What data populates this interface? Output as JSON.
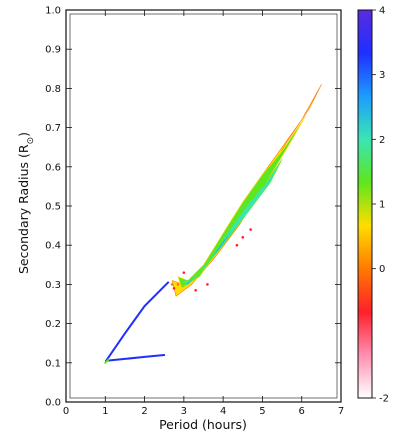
{
  "chart_data": {
    "type": "heatmap",
    "title": "",
    "xlabel": "Period (hours)",
    "ylabel": "Secondary Radius (R",
    "ylabel_subscript": "⊙",
    "ylabel_close": ")",
    "xlim": [
      0,
      7
    ],
    "ylim": [
      0.0,
      1.0
    ],
    "x_ticks": [
      "0",
      "1",
      "2",
      "3",
      "4",
      "5",
      "6",
      "7"
    ],
    "y_ticks": [
      "0.0",
      "0.1",
      "0.2",
      "0.3",
      "0.4",
      "0.5",
      "0.6",
      "0.7",
      "0.8",
      "0.9",
      "1.0"
    ],
    "colorbar": {
      "range": [
        -2,
        4
      ],
      "ticks": [
        "-2",
        "0",
        "1",
        "2",
        "3",
        "4"
      ],
      "colormap": [
        "#ffffff",
        "#ff8fb0",
        "#ff1f2a",
        "#ff7a00",
        "#ffdd00",
        "#5fe61e",
        "#39e6b4",
        "#1d9bff",
        "#1f2fff",
        "#5a2be0"
      ]
    },
    "regions": [
      {
        "name": "main-band-outer",
        "level": 0.6,
        "path": [
          [
            2.7,
            0.31
          ],
          [
            3.0,
            0.3
          ],
          [
            3.5,
            0.34
          ],
          [
            4.0,
            0.43
          ],
          [
            4.5,
            0.51
          ],
          [
            5.0,
            0.58
          ],
          [
            5.5,
            0.65
          ],
          [
            6.0,
            0.72
          ],
          [
            6.5,
            0.81
          ],
          [
            6.2,
            0.75
          ],
          [
            5.6,
            0.66
          ],
          [
            5.0,
            0.55
          ],
          [
            4.4,
            0.45
          ],
          [
            3.8,
            0.37
          ],
          [
            3.2,
            0.3
          ],
          [
            2.8,
            0.27
          ]
        ]
      },
      {
        "name": "main-band-inner",
        "level": 1.1,
        "path": [
          [
            2.85,
            0.32
          ],
          [
            3.1,
            0.31
          ],
          [
            3.5,
            0.35
          ],
          [
            4.0,
            0.43
          ],
          [
            4.5,
            0.51
          ],
          [
            5.0,
            0.58
          ],
          [
            5.5,
            0.64
          ],
          [
            6.1,
            0.73
          ],
          [
            5.7,
            0.66
          ],
          [
            5.1,
            0.56
          ],
          [
            4.5,
            0.47
          ],
          [
            3.9,
            0.39
          ],
          [
            3.4,
            0.32
          ],
          [
            2.95,
            0.29
          ]
        ]
      },
      {
        "name": "main-band-core",
        "level": 1.8,
        "path": [
          [
            2.95,
            0.31
          ],
          [
            3.2,
            0.31
          ],
          [
            3.6,
            0.35
          ],
          [
            4.1,
            0.43
          ],
          [
            4.6,
            0.5
          ],
          [
            5.1,
            0.56
          ],
          [
            5.5,
            0.62
          ],
          [
            5.2,
            0.56
          ],
          [
            4.6,
            0.48
          ],
          [
            4.0,
            0.4
          ],
          [
            3.5,
            0.34
          ],
          [
            3.1,
            0.3
          ]
        ]
      },
      {
        "name": "main-band-spine",
        "level": 2.6,
        "path": [
          [
            3.05,
            0.3
          ],
          [
            3.4,
            0.33
          ],
          [
            3.9,
            0.39
          ],
          [
            4.4,
            0.46
          ],
          [
            4.0,
            0.41
          ],
          [
            3.5,
            0.34
          ],
          [
            3.1,
            0.3
          ]
        ]
      }
    ],
    "tracks": [
      {
        "name": "upper-branch",
        "level": 3.0,
        "points": [
          [
            1.02,
            0.105
          ],
          [
            1.5,
            0.175
          ],
          [
            2.0,
            0.245
          ],
          [
            2.6,
            0.305
          ]
        ]
      },
      {
        "name": "lower-branch",
        "level": 3.6,
        "points": [
          [
            1.02,
            0.105
          ],
          [
            1.5,
            0.11
          ],
          [
            2.0,
            0.115
          ],
          [
            2.5,
            0.12
          ]
        ]
      },
      {
        "name": "bounce-tip",
        "level": 1.2,
        "points": [
          [
            1.0,
            0.1
          ],
          [
            1.08,
            0.108
          ]
        ]
      }
    ],
    "scatter": [
      {
        "name": "scatter-1",
        "level": -0.5,
        "x": 2.75,
        "y": 0.29
      },
      {
        "name": "scatter-2",
        "level": -0.3,
        "x": 2.85,
        "y": 0.3
      },
      {
        "name": "scatter-3",
        "level": -0.8,
        "x": 3.3,
        "y": 0.285
      },
      {
        "name": "scatter-4",
        "level": -0.5,
        "x": 3.6,
        "y": 0.3
      },
      {
        "name": "scatter-5",
        "level": -0.9,
        "x": 4.35,
        "y": 0.4
      },
      {
        "name": "scatter-6",
        "level": -0.4,
        "x": 4.5,
        "y": 0.42
      },
      {
        "name": "scatter-7",
        "level": -0.6,
        "x": 4.7,
        "y": 0.44
      },
      {
        "name": "scatter-8",
        "level": -0.2,
        "x": 2.7,
        "y": 0.3
      },
      {
        "name": "scatter-9",
        "level": -0.9,
        "x": 3.0,
        "y": 0.33
      }
    ]
  }
}
